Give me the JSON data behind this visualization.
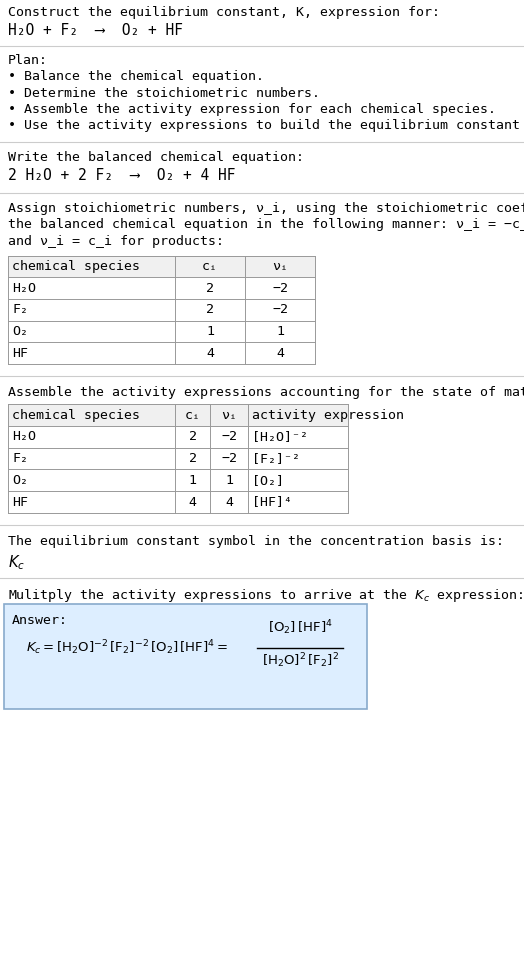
{
  "title_line1": "Construct the equilibrium constant, K, expression for:",
  "title_line2": "H_2O + F_2  ⟶  O_2 + HF",
  "plan_header": "Plan:",
  "plan_items": [
    "• Balance the chemical equation.",
    "• Determine the stoichiometric numbers.",
    "• Assemble the activity expression for each chemical species.",
    "• Use the activity expressions to build the equilibrium constant expression."
  ],
  "balanced_header": "Write the balanced chemical equation:",
  "balanced_eq": "2 H_2O + 2 F_2  ⟶  O_2 + 4 HF",
  "stoich_intro_lines": [
    "Assign stoichiometric numbers, ν_i, using the stoichiometric coefficients, c_i, from",
    "the balanced chemical equation in the following manner: ν_i = −c_i for reactants",
    "and ν_i = c_i for products:"
  ],
  "table1_headers": [
    "chemical species",
    "c_i",
    "ν_i"
  ],
  "table1_rows": [
    [
      "H_2O",
      "2",
      "−2"
    ],
    [
      "F_2",
      "2",
      "−2"
    ],
    [
      "O_2",
      "1",
      "1"
    ],
    [
      "HF",
      "4",
      "4"
    ]
  ],
  "activity_intro": "Assemble the activity expressions accounting for the state of matter and ν_i:",
  "table2_headers": [
    "chemical species",
    "c_i",
    "ν_i",
    "activity expression"
  ],
  "table2_rows": [
    [
      "H_2O",
      "2",
      "−2",
      "[H_2O]^−2"
    ],
    [
      "F_2",
      "2",
      "−2",
      "[F_2]^−2"
    ],
    [
      "O_2",
      "1",
      "1",
      "[O_2]"
    ],
    [
      "HF",
      "4",
      "4",
      "[HF]^4"
    ]
  ],
  "kc_text": "The equilibrium constant symbol in the concentration basis is:",
  "kc_symbol": "K_c",
  "multiply_text": "Mulitply the activity expressions to arrive at the K_c expression:",
  "answer_label": "Answer:",
  "answer_eq_line1": "K_c = [H_2O]^−2 [F_2]^−2 [O_2] [HF]^4 =",
  "answer_frac_num": "[O_2] [HF]^4",
  "answer_frac_den": "[H_2O]^2 [F_2]^2",
  "answer_box_color": "#ddeeff",
  "answer_box_border": "#88aacc",
  "bg_color": "#ffffff",
  "text_color": "#000000",
  "separator_color": "#cccccc",
  "font_size": 9.5,
  "mono_font": "DejaVu Sans Mono",
  "title_font_size": 9.5
}
